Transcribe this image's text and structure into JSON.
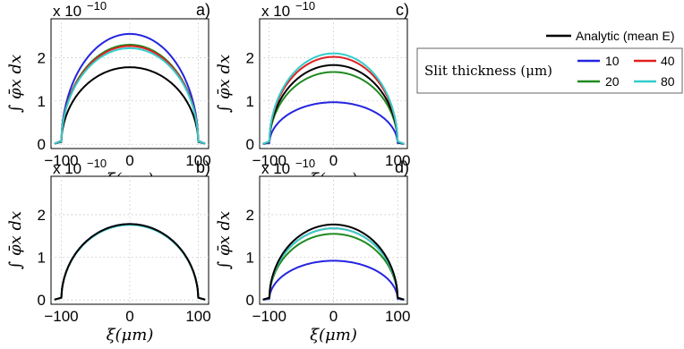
{
  "chart_data": [
    {
      "type": "line",
      "panel_label": "a)",
      "multiplier": "x 10",
      "exponent": "-10",
      "xlabel": "ξ(μm)",
      "ylabel": "∫ φ̄x dx",
      "xlim": [
        -115,
        115
      ],
      "ylim": [
        -0.1,
        2.9
      ],
      "xticks": [
        "-100",
        "0",
        "100"
      ],
      "yticks": [
        "0",
        "1",
        "2"
      ],
      "grid": true,
      "series": [
        {
          "name": "Analytic (mean E)",
          "color": "#000000",
          "peak": 1.78
        },
        {
          "name": "10",
          "color": "#2424e0",
          "peak": 2.55
        },
        {
          "name": "20",
          "color": "#1f8a1f",
          "peak": 2.3
        },
        {
          "name": "40",
          "color": "#e02020",
          "peak": 2.27
        },
        {
          "name": "80",
          "color": "#33cccc",
          "peak": 2.22
        }
      ]
    },
    {
      "type": "line",
      "panel_label": "b)",
      "multiplier": "x 10",
      "exponent": "-10",
      "xlabel": "ξ(μm)",
      "ylabel": "∫ φ̄x dx",
      "xlim": [
        -115,
        115
      ],
      "ylim": [
        -0.1,
        2.9
      ],
      "xticks": [
        "-100",
        "0",
        "100"
      ],
      "yticks": [
        "0",
        "1",
        "2"
      ],
      "grid": true,
      "series": [
        {
          "name": "10",
          "color": "#2424e0",
          "peak": 1.78
        },
        {
          "name": "20",
          "color": "#1f8a1f",
          "peak": 1.77
        },
        {
          "name": "40",
          "color": "#e02020",
          "peak": 1.77
        },
        {
          "name": "80",
          "color": "#33cccc",
          "peak": 1.76
        },
        {
          "name": "Analytic (mean E)",
          "color": "#000000",
          "peak": 1.78
        }
      ]
    },
    {
      "type": "line",
      "panel_label": "c)",
      "multiplier": "x 10",
      "exponent": "-10",
      "xlabel": "ξ(μm)",
      "ylabel": "∫ φ̄x dx",
      "xlim": [
        -115,
        115
      ],
      "ylim": [
        -0.1,
        2.9
      ],
      "xticks": [
        "-100",
        "0",
        "100"
      ],
      "yticks": [
        "0",
        "1",
        "2"
      ],
      "grid": true,
      "series": [
        {
          "name": "10",
          "color": "#2424e0",
          "peak": 0.97
        },
        {
          "name": "20",
          "color": "#1f8a1f",
          "peak": 1.67
        },
        {
          "name": "Analytic (mean E)",
          "color": "#000000",
          "peak": 1.83
        },
        {
          "name": "40",
          "color": "#e02020",
          "peak": 2.02
        },
        {
          "name": "80",
          "color": "#33cccc",
          "peak": 2.1
        }
      ]
    },
    {
      "type": "line",
      "panel_label": "d)",
      "multiplier": "x 10",
      "exponent": "-10",
      "xlabel": "ξ(μm)",
      "ylabel": "∫ φ̄x dx",
      "xlim": [
        -115,
        115
      ],
      "ylim": [
        -0.1,
        2.9
      ],
      "xticks": [
        "-100",
        "0",
        "100"
      ],
      "yticks": [
        "0",
        "1",
        "2"
      ],
      "grid": true,
      "series": [
        {
          "name": "10",
          "color": "#2424e0",
          "peak": 0.92
        },
        {
          "name": "20",
          "color": "#1f8a1f",
          "peak": 1.55
        },
        {
          "name": "40",
          "color": "#e02020",
          "peak": 1.68
        },
        {
          "name": "80",
          "color": "#33cccc",
          "peak": 1.68
        },
        {
          "name": "Analytic (mean E)",
          "color": "#000000",
          "peak": 1.77
        }
      ]
    }
  ],
  "legend": {
    "analytic_label": "Analytic (mean E)",
    "analytic_color": "#000000",
    "title": "Slit thickness (μm)",
    "entries": [
      {
        "label": "10",
        "color": "#2424e0"
      },
      {
        "label": "40",
        "color": "#e02020"
      },
      {
        "label": "20",
        "color": "#1f8a1f"
      },
      {
        "label": "80",
        "color": "#33cccc"
      }
    ]
  }
}
